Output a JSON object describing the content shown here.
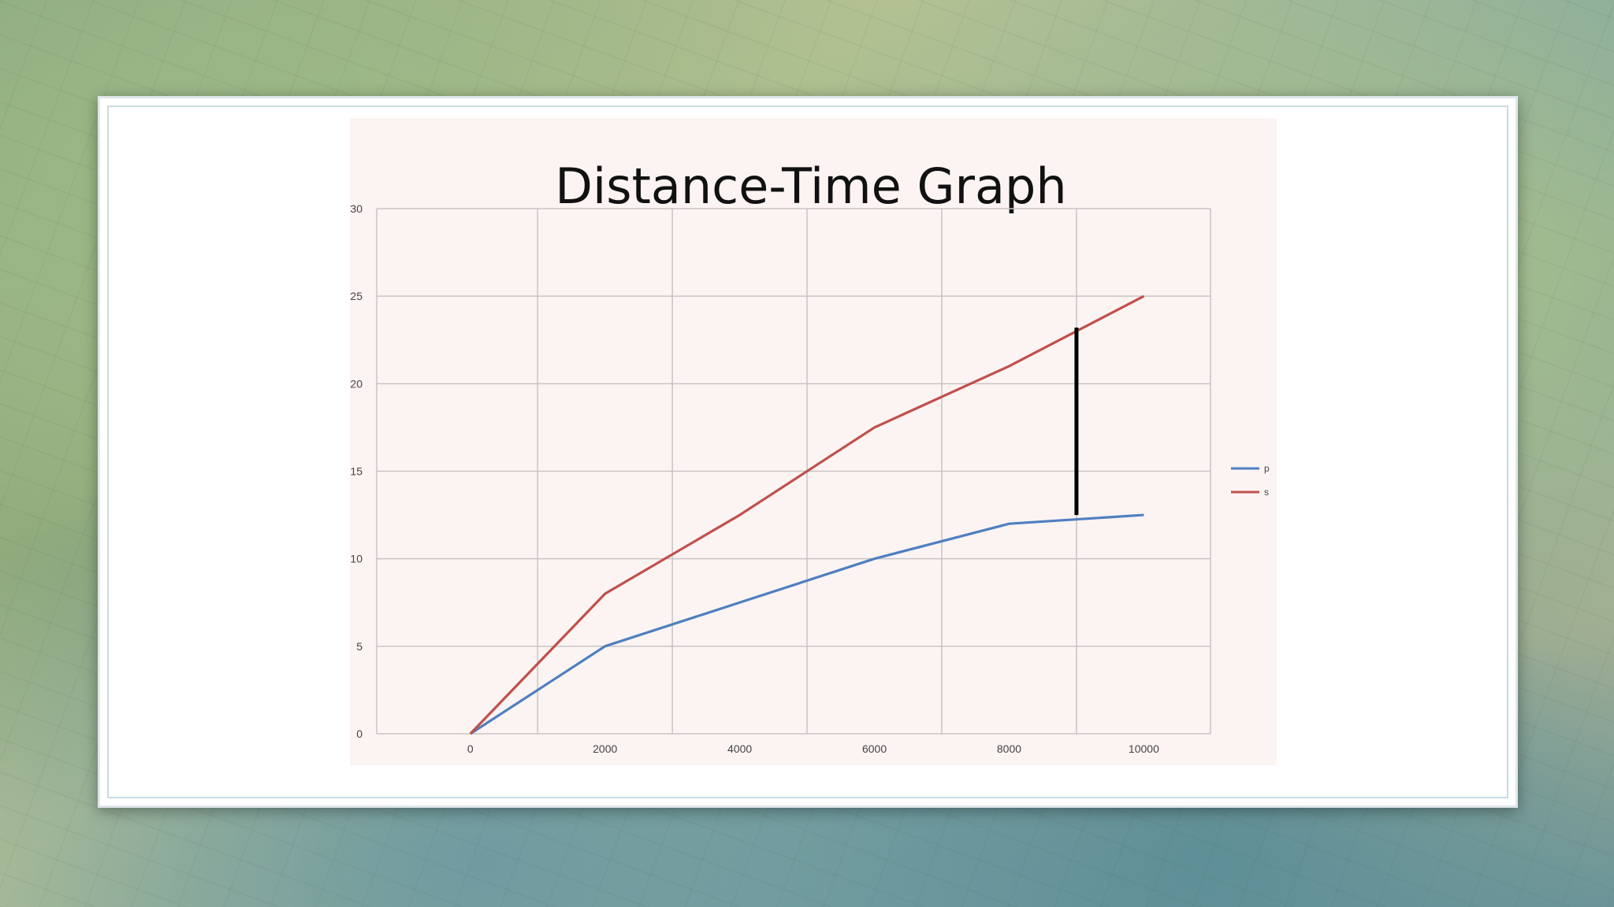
{
  "chart_data": {
    "type": "line",
    "title": "Distance-Time Graph",
    "xlabel": "",
    "ylabel": "",
    "x": [
      0,
      2000,
      4000,
      6000,
      8000,
      10000
    ],
    "xlim": [
      -1390,
      10990
    ],
    "ylim": [
      0,
      30
    ],
    "xticks": [
      0,
      2000,
      4000,
      6000,
      8000,
      10000
    ],
    "xtick_labels": [
      "0",
      "2000",
      "4000",
      "6000",
      "8000",
      "10000"
    ],
    "yticks": [
      0,
      5,
      10,
      15,
      20,
      25,
      30
    ],
    "ytick_labels": [
      "0",
      "5",
      "10",
      "15",
      "20",
      "25",
      "30"
    ],
    "grid": true,
    "legend_position": "right",
    "series": [
      {
        "name": "p",
        "color": "#4f7fc1",
        "values": [
          0,
          5,
          7.5,
          10,
          12,
          12.5
        ]
      },
      {
        "name": "s",
        "color": "#c0504d",
        "values": [
          0,
          8,
          12.5,
          17.5,
          21,
          25
        ]
      }
    ],
    "annotations": [
      {
        "type": "vertical-segment",
        "x": 9000,
        "y_from": 12.5,
        "y_to": 23.2,
        "color": "#000000"
      }
    ]
  }
}
